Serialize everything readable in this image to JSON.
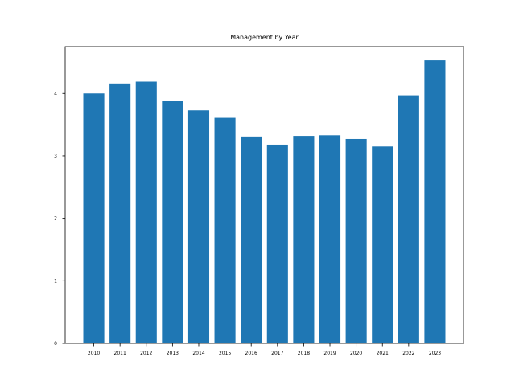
{
  "chart_data": {
    "type": "bar",
    "title": "Management by Year",
    "xlabel": "",
    "ylabel": "",
    "categories": [
      "2010",
      "2011",
      "2012",
      "2013",
      "2014",
      "2015",
      "2016",
      "2017",
      "2018",
      "2019",
      "2020",
      "2021",
      "2022",
      "2023"
    ],
    "values": [
      4.0,
      4.16,
      4.19,
      3.88,
      3.73,
      3.61,
      3.31,
      3.18,
      3.32,
      3.33,
      3.27,
      3.15,
      3.97,
      4.53
    ],
    "ylim": [
      0,
      4.75
    ],
    "yticks": [
      "0",
      "1",
      "2",
      "3",
      "4"
    ],
    "grid": false,
    "legend": "none",
    "bar_color": "#1f77b4"
  }
}
